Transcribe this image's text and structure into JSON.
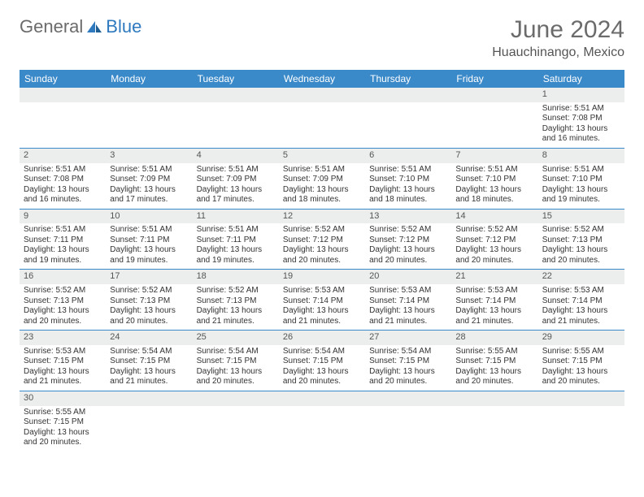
{
  "brand": {
    "part1": "General",
    "part2": "Blue"
  },
  "title": "June 2024",
  "location": "Huauchinango, Mexico",
  "columns": [
    "Sunday",
    "Monday",
    "Tuesday",
    "Wednesday",
    "Thursday",
    "Friday",
    "Saturday"
  ],
  "colors": {
    "header_bg": "#3a89c9",
    "header_text": "#ffffff",
    "border": "#3a89c9",
    "daynum_bg": "#eceded",
    "title_color": "#6b6b6b",
    "brand_blue": "#2f7abf"
  },
  "weeks": [
    [
      {
        "n": "",
        "sr": "",
        "ss": "",
        "dl": ""
      },
      {
        "n": "",
        "sr": "",
        "ss": "",
        "dl": ""
      },
      {
        "n": "",
        "sr": "",
        "ss": "",
        "dl": ""
      },
      {
        "n": "",
        "sr": "",
        "ss": "",
        "dl": ""
      },
      {
        "n": "",
        "sr": "",
        "ss": "",
        "dl": ""
      },
      {
        "n": "",
        "sr": "",
        "ss": "",
        "dl": ""
      },
      {
        "n": "1",
        "sr": "Sunrise: 5:51 AM",
        "ss": "Sunset: 7:08 PM",
        "dl": "Daylight: 13 hours and 16 minutes."
      }
    ],
    [
      {
        "n": "2",
        "sr": "Sunrise: 5:51 AM",
        "ss": "Sunset: 7:08 PM",
        "dl": "Daylight: 13 hours and 16 minutes."
      },
      {
        "n": "3",
        "sr": "Sunrise: 5:51 AM",
        "ss": "Sunset: 7:09 PM",
        "dl": "Daylight: 13 hours and 17 minutes."
      },
      {
        "n": "4",
        "sr": "Sunrise: 5:51 AM",
        "ss": "Sunset: 7:09 PM",
        "dl": "Daylight: 13 hours and 17 minutes."
      },
      {
        "n": "5",
        "sr": "Sunrise: 5:51 AM",
        "ss": "Sunset: 7:09 PM",
        "dl": "Daylight: 13 hours and 18 minutes."
      },
      {
        "n": "6",
        "sr": "Sunrise: 5:51 AM",
        "ss": "Sunset: 7:10 PM",
        "dl": "Daylight: 13 hours and 18 minutes."
      },
      {
        "n": "7",
        "sr": "Sunrise: 5:51 AM",
        "ss": "Sunset: 7:10 PM",
        "dl": "Daylight: 13 hours and 18 minutes."
      },
      {
        "n": "8",
        "sr": "Sunrise: 5:51 AM",
        "ss": "Sunset: 7:10 PM",
        "dl": "Daylight: 13 hours and 19 minutes."
      }
    ],
    [
      {
        "n": "9",
        "sr": "Sunrise: 5:51 AM",
        "ss": "Sunset: 7:11 PM",
        "dl": "Daylight: 13 hours and 19 minutes."
      },
      {
        "n": "10",
        "sr": "Sunrise: 5:51 AM",
        "ss": "Sunset: 7:11 PM",
        "dl": "Daylight: 13 hours and 19 minutes."
      },
      {
        "n": "11",
        "sr": "Sunrise: 5:51 AM",
        "ss": "Sunset: 7:11 PM",
        "dl": "Daylight: 13 hours and 19 minutes."
      },
      {
        "n": "12",
        "sr": "Sunrise: 5:52 AM",
        "ss": "Sunset: 7:12 PM",
        "dl": "Daylight: 13 hours and 20 minutes."
      },
      {
        "n": "13",
        "sr": "Sunrise: 5:52 AM",
        "ss": "Sunset: 7:12 PM",
        "dl": "Daylight: 13 hours and 20 minutes."
      },
      {
        "n": "14",
        "sr": "Sunrise: 5:52 AM",
        "ss": "Sunset: 7:12 PM",
        "dl": "Daylight: 13 hours and 20 minutes."
      },
      {
        "n": "15",
        "sr": "Sunrise: 5:52 AM",
        "ss": "Sunset: 7:13 PM",
        "dl": "Daylight: 13 hours and 20 minutes."
      }
    ],
    [
      {
        "n": "16",
        "sr": "Sunrise: 5:52 AM",
        "ss": "Sunset: 7:13 PM",
        "dl": "Daylight: 13 hours and 20 minutes."
      },
      {
        "n": "17",
        "sr": "Sunrise: 5:52 AM",
        "ss": "Sunset: 7:13 PM",
        "dl": "Daylight: 13 hours and 20 minutes."
      },
      {
        "n": "18",
        "sr": "Sunrise: 5:52 AM",
        "ss": "Sunset: 7:13 PM",
        "dl": "Daylight: 13 hours and 21 minutes."
      },
      {
        "n": "19",
        "sr": "Sunrise: 5:53 AM",
        "ss": "Sunset: 7:14 PM",
        "dl": "Daylight: 13 hours and 21 minutes."
      },
      {
        "n": "20",
        "sr": "Sunrise: 5:53 AM",
        "ss": "Sunset: 7:14 PM",
        "dl": "Daylight: 13 hours and 21 minutes."
      },
      {
        "n": "21",
        "sr": "Sunrise: 5:53 AM",
        "ss": "Sunset: 7:14 PM",
        "dl": "Daylight: 13 hours and 21 minutes."
      },
      {
        "n": "22",
        "sr": "Sunrise: 5:53 AM",
        "ss": "Sunset: 7:14 PM",
        "dl": "Daylight: 13 hours and 21 minutes."
      }
    ],
    [
      {
        "n": "23",
        "sr": "Sunrise: 5:53 AM",
        "ss": "Sunset: 7:15 PM",
        "dl": "Daylight: 13 hours and 21 minutes."
      },
      {
        "n": "24",
        "sr": "Sunrise: 5:54 AM",
        "ss": "Sunset: 7:15 PM",
        "dl": "Daylight: 13 hours and 21 minutes."
      },
      {
        "n": "25",
        "sr": "Sunrise: 5:54 AM",
        "ss": "Sunset: 7:15 PM",
        "dl": "Daylight: 13 hours and 20 minutes."
      },
      {
        "n": "26",
        "sr": "Sunrise: 5:54 AM",
        "ss": "Sunset: 7:15 PM",
        "dl": "Daylight: 13 hours and 20 minutes."
      },
      {
        "n": "27",
        "sr": "Sunrise: 5:54 AM",
        "ss": "Sunset: 7:15 PM",
        "dl": "Daylight: 13 hours and 20 minutes."
      },
      {
        "n": "28",
        "sr": "Sunrise: 5:55 AM",
        "ss": "Sunset: 7:15 PM",
        "dl": "Daylight: 13 hours and 20 minutes."
      },
      {
        "n": "29",
        "sr": "Sunrise: 5:55 AM",
        "ss": "Sunset: 7:15 PM",
        "dl": "Daylight: 13 hours and 20 minutes."
      }
    ],
    [
      {
        "n": "30",
        "sr": "Sunrise: 5:55 AM",
        "ss": "Sunset: 7:15 PM",
        "dl": "Daylight: 13 hours and 20 minutes."
      },
      {
        "n": "",
        "sr": "",
        "ss": "",
        "dl": ""
      },
      {
        "n": "",
        "sr": "",
        "ss": "",
        "dl": ""
      },
      {
        "n": "",
        "sr": "",
        "ss": "",
        "dl": ""
      },
      {
        "n": "",
        "sr": "",
        "ss": "",
        "dl": ""
      },
      {
        "n": "",
        "sr": "",
        "ss": "",
        "dl": ""
      },
      {
        "n": "",
        "sr": "",
        "ss": "",
        "dl": ""
      }
    ]
  ]
}
